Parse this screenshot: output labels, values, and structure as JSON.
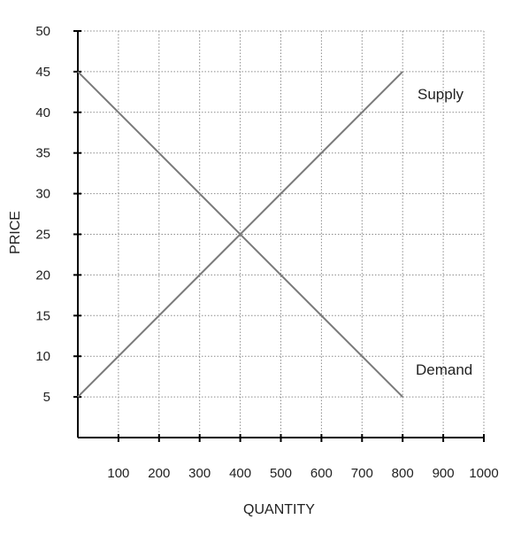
{
  "chart_data": {
    "type": "line",
    "xlabel": "QUANTITY",
    "ylabel": "PRICE",
    "xlim": [
      0,
      1000
    ],
    "ylim": [
      0,
      50
    ],
    "x_ticks": [
      100,
      200,
      300,
      400,
      500,
      600,
      700,
      800,
      900,
      1000
    ],
    "y_ticks": [
      5,
      10,
      15,
      20,
      25,
      30,
      35,
      40,
      45,
      50
    ],
    "grid": true,
    "grid_style": "dotted",
    "series": [
      {
        "name": "Supply",
        "points": [
          {
            "x": 0,
            "y": 5
          },
          {
            "x": 800,
            "y": 45
          }
        ]
      },
      {
        "name": "Demand",
        "points": [
          {
            "x": 0,
            "y": 45
          },
          {
            "x": 800,
            "y": 5
          }
        ]
      }
    ]
  },
  "colors": {
    "lines": "#7a7a7a",
    "grid": "#8c8c8c",
    "axis": "#000000",
    "text": "#222222"
  }
}
